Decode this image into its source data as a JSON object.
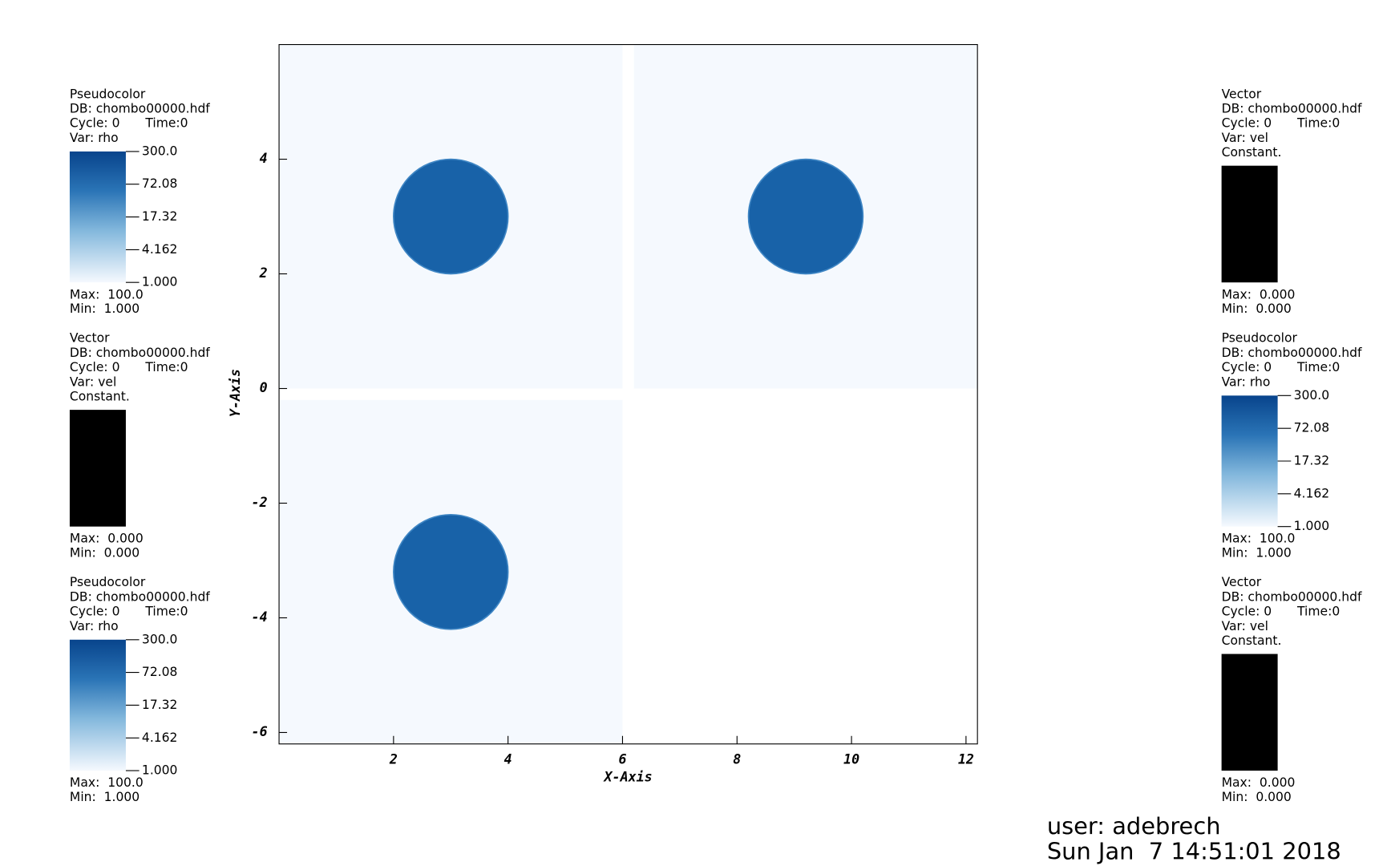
{
  "chart_data": {
    "type": "pseudocolor",
    "x_label": "X-Axis",
    "y_label": "Y-Axis",
    "xlim": [
      0,
      12.2
    ],
    "ylim": [
      -6.2,
      6.0
    ],
    "xticks": [
      2,
      4,
      6,
      8,
      10,
      12
    ],
    "yticks": [
      -6,
      -4,
      -2,
      0,
      2,
      4
    ],
    "patch_color": "#f5f9fe",
    "blob_color": "#1862a8",
    "patches": [
      {
        "x": [
          0,
          6
        ],
        "y": [
          0,
          6
        ]
      },
      {
        "x": [
          6.2,
          12.2
        ],
        "y": [
          0,
          6
        ]
      },
      {
        "x": [
          0,
          6
        ],
        "y": [
          -6.2,
          -0.2
        ]
      }
    ],
    "blobs": [
      {
        "x": 3,
        "y": 3,
        "r": 1
      },
      {
        "x": 9.2,
        "y": 3,
        "r": 1
      },
      {
        "x": 3,
        "y": -3.2,
        "r": 1
      }
    ]
  },
  "legends": [
    {
      "plot": "Pseudocolor",
      "db": "DB: chombo00000.hdf",
      "cycle": "Cycle: 0",
      "time": "Time:0",
      "var": "Var: rho",
      "ticks": [
        "300.0",
        "72.08",
        "17.32",
        "4.162",
        "1.000"
      ],
      "max": "Max:  100.0",
      "min": "Min:  1.000"
    },
    {
      "plot": "Vector",
      "db": "DB: chombo00000.hdf",
      "cycle": "Cycle: 0",
      "time": "Time:0",
      "var": "Var: vel",
      "constant": "Constant.",
      "max": "Max:  0.000",
      "min": "Min:  0.000"
    },
    {
      "plot": "Pseudocolor",
      "db": "DB: chombo00000.hdf",
      "cycle": "Cycle: 0",
      "time": "Time:0",
      "var": "Var: rho",
      "ticks": [
        "300.0",
        "72.08",
        "17.32",
        "4.162",
        "1.000"
      ],
      "max": "Max:  100.0",
      "min": "Min:  1.000"
    },
    {
      "plot": "Vector",
      "db": "DB: chombo00000.hdf",
      "cycle": "Cycle: 0",
      "time": "Time:0",
      "var": "Var: vel",
      "constant": "Constant.",
      "max": "Max:  0.000",
      "min": "Min:  0.000"
    },
    {
      "plot": "Pseudocolor",
      "db": "DB: chombo00000.hdf",
      "cycle": "Cycle: 0",
      "time": "Time:0",
      "var": "Var: rho",
      "ticks": [
        "300.0",
        "72.08",
        "17.32",
        "4.162",
        "1.000"
      ],
      "max": "Max:  100.0",
      "min": "Min:  1.000"
    },
    {
      "plot": "Vector",
      "db": "DB: chombo00000.hdf",
      "cycle": "Cycle: 0",
      "time": "Time:0",
      "var": "Var: vel",
      "constant": "Constant.",
      "max": "Max:  0.000",
      "min": "Min:  0.000"
    }
  ],
  "user": "user: adebrech",
  "date": "Sun Jan  7 14:51:01 2018"
}
